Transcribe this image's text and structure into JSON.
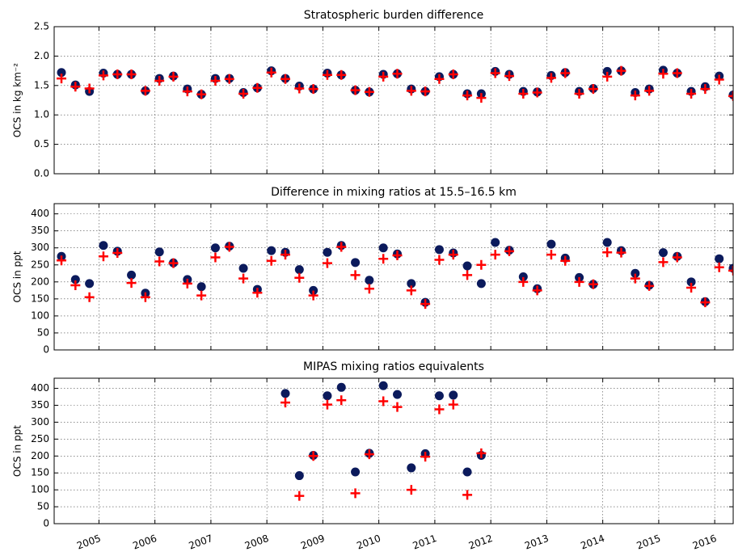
{
  "chart_data": [
    {
      "type": "scatter",
      "title": "Stratospheric burden difference",
      "ylabel": "OCS in kg km⁻²",
      "x": [
        2004.33,
        2004.58,
        2004.83,
        2005.08,
        2005.33,
        2005.58,
        2005.83,
        2006.08,
        2006.33,
        2006.58,
        2006.83,
        2007.08,
        2007.33,
        2007.58,
        2007.83,
        2008.08,
        2008.33,
        2008.58,
        2008.83,
        2009.08,
        2009.33,
        2009.58,
        2009.83,
        2010.08,
        2010.33,
        2010.58,
        2010.83,
        2011.08,
        2011.33,
        2011.58,
        2011.83,
        2012.08,
        2012.33,
        2012.58,
        2012.83,
        2013.08,
        2013.33,
        2013.58,
        2013.83,
        2014.08,
        2014.33,
        2014.58,
        2014.83,
        2015.08,
        2015.33,
        2015.58,
        2015.83,
        2016.08,
        2016.33
      ],
      "series": [
        {
          "color": "#0b1a5c",
          "marker": "circle",
          "values": [
            1.72,
            1.51,
            1.4,
            1.71,
            1.69,
            1.69,
            1.41,
            1.62,
            1.66,
            1.44,
            1.35,
            1.62,
            1.62,
            1.38,
            1.46,
            1.75,
            1.62,
            1.49,
            1.44,
            1.71,
            1.68,
            1.42,
            1.39,
            1.69,
            1.7,
            1.44,
            1.4,
            1.65,
            1.69,
            1.36,
            1.36,
            1.74,
            1.69,
            1.4,
            1.39,
            1.67,
            1.72,
            1.4,
            1.45,
            1.74,
            1.75,
            1.38,
            1.44,
            1.76,
            1.71,
            1.4,
            1.48,
            1.66,
            1.34
          ]
        },
        {
          "color": "#ff0000",
          "marker": "plus",
          "values": [
            1.62,
            1.48,
            1.45,
            1.67,
            1.69,
            1.69,
            1.41,
            1.58,
            1.65,
            1.4,
            1.35,
            1.58,
            1.61,
            1.36,
            1.46,
            1.72,
            1.61,
            1.45,
            1.44,
            1.68,
            1.68,
            1.42,
            1.39,
            1.65,
            1.7,
            1.41,
            1.4,
            1.61,
            1.69,
            1.33,
            1.29,
            1.71,
            1.66,
            1.36,
            1.38,
            1.63,
            1.71,
            1.36,
            1.44,
            1.65,
            1.75,
            1.33,
            1.41,
            1.7,
            1.71,
            1.36,
            1.44,
            1.6,
            1.32
          ]
        }
      ],
      "xlim": [
        2004.2,
        2016.33
      ],
      "xticks": [
        2005,
        2006,
        2007,
        2008,
        2009,
        2010,
        2011,
        2012,
        2013,
        2014,
        2015,
        2016
      ],
      "ylim": [
        0,
        2.5
      ],
      "yticks": [
        {
          "value": 0,
          "label": "0.0"
        },
        0.5,
        {
          "value": 1,
          "label": "1.0"
        },
        1.5,
        {
          "value": 2,
          "label": "2.0"
        },
        2.5
      ],
      "grid": true
    },
    {
      "type": "scatter",
      "title": "Difference in mixing ratios at 15.5–16.5 km",
      "ylabel": "OCS in ppt",
      "x": [
        2004.33,
        2004.58,
        2004.83,
        2005.08,
        2005.33,
        2005.58,
        2005.83,
        2006.08,
        2006.33,
        2006.58,
        2006.83,
        2007.08,
        2007.33,
        2007.58,
        2007.83,
        2008.08,
        2008.33,
        2008.58,
        2008.83,
        2009.08,
        2009.33,
        2009.58,
        2009.83,
        2010.08,
        2010.33,
        2010.58,
        2010.83,
        2011.08,
        2011.33,
        2011.58,
        2011.83,
        2012.08,
        2012.33,
        2012.58,
        2012.83,
        2013.08,
        2013.33,
        2013.58,
        2013.83,
        2014.08,
        2014.33,
        2014.58,
        2014.83,
        2015.08,
        2015.33,
        2015.58,
        2015.83,
        2016.08,
        2016.33
      ],
      "series": [
        {
          "color": "#0b1a5c",
          "marker": "circle",
          "values": [
            275,
            207,
            195,
            307,
            290,
            220,
            167,
            288,
            256,
            207,
            186,
            300,
            305,
            240,
            178,
            292,
            287,
            236,
            175,
            287,
            307,
            257,
            205,
            300,
            282,
            195,
            140,
            295,
            285,
            247,
            195,
            316,
            293,
            215,
            180,
            311,
            270,
            213,
            193,
            316,
            292,
            225,
            190,
            286,
            275,
            200,
            142,
            268,
            240
          ]
        },
        {
          "color": "#ff0000",
          "marker": "plus",
          "values": [
            263,
            190,
            155,
            275,
            285,
            197,
            155,
            260,
            255,
            195,
            160,
            272,
            303,
            210,
            168,
            262,
            280,
            212,
            160,
            255,
            303,
            220,
            180,
            268,
            278,
            175,
            135,
            265,
            280,
            220,
            250,
            280,
            290,
            200,
            175,
            280,
            262,
            200,
            193,
            287,
            286,
            210,
            188,
            258,
            272,
            183,
            140,
            243,
            233
          ]
        }
      ],
      "xlim": [
        2004.2,
        2016.33
      ],
      "xticks": [
        2005,
        2006,
        2007,
        2008,
        2009,
        2010,
        2011,
        2012,
        2013,
        2014,
        2015,
        2016
      ],
      "ylim": [
        0,
        430
      ],
      "yticks": [
        0,
        50,
        100,
        150,
        200,
        250,
        300,
        350,
        400
      ],
      "grid": true
    },
    {
      "type": "scatter",
      "title": "MIPAS mixing ratios equivalents",
      "ylabel": "OCS in ppt",
      "x": [
        2008.33,
        2008.58,
        2008.83,
        2009.08,
        2009.33,
        2009.58,
        2009.83,
        2010.08,
        2010.33,
        2010.58,
        2010.83,
        2011.08,
        2011.33,
        2011.58,
        2011.83
      ],
      "series": [
        {
          "color": "#0b1a5c",
          "marker": "circle",
          "values": [
            385,
            142,
            202,
            378,
            403,
            153,
            208,
            408,
            382,
            165,
            207,
            378,
            380,
            153,
            202
          ]
        },
        {
          "color": "#ff0000",
          "marker": "plus",
          "values": [
            358,
            82,
            200,
            352,
            365,
            90,
            205,
            362,
            345,
            100,
            198,
            338,
            352,
            85,
            208
          ]
        }
      ],
      "xlim": [
        2004.2,
        2016.33
      ],
      "xticks": [
        2005,
        2006,
        2007,
        2008,
        2009,
        2010,
        2011,
        2012,
        2013,
        2014,
        2015,
        2016
      ],
      "ylim": [
        0,
        430
      ],
      "yticks": [
        0,
        50,
        100,
        150,
        200,
        250,
        300,
        350,
        400
      ],
      "grid": true
    }
  ]
}
